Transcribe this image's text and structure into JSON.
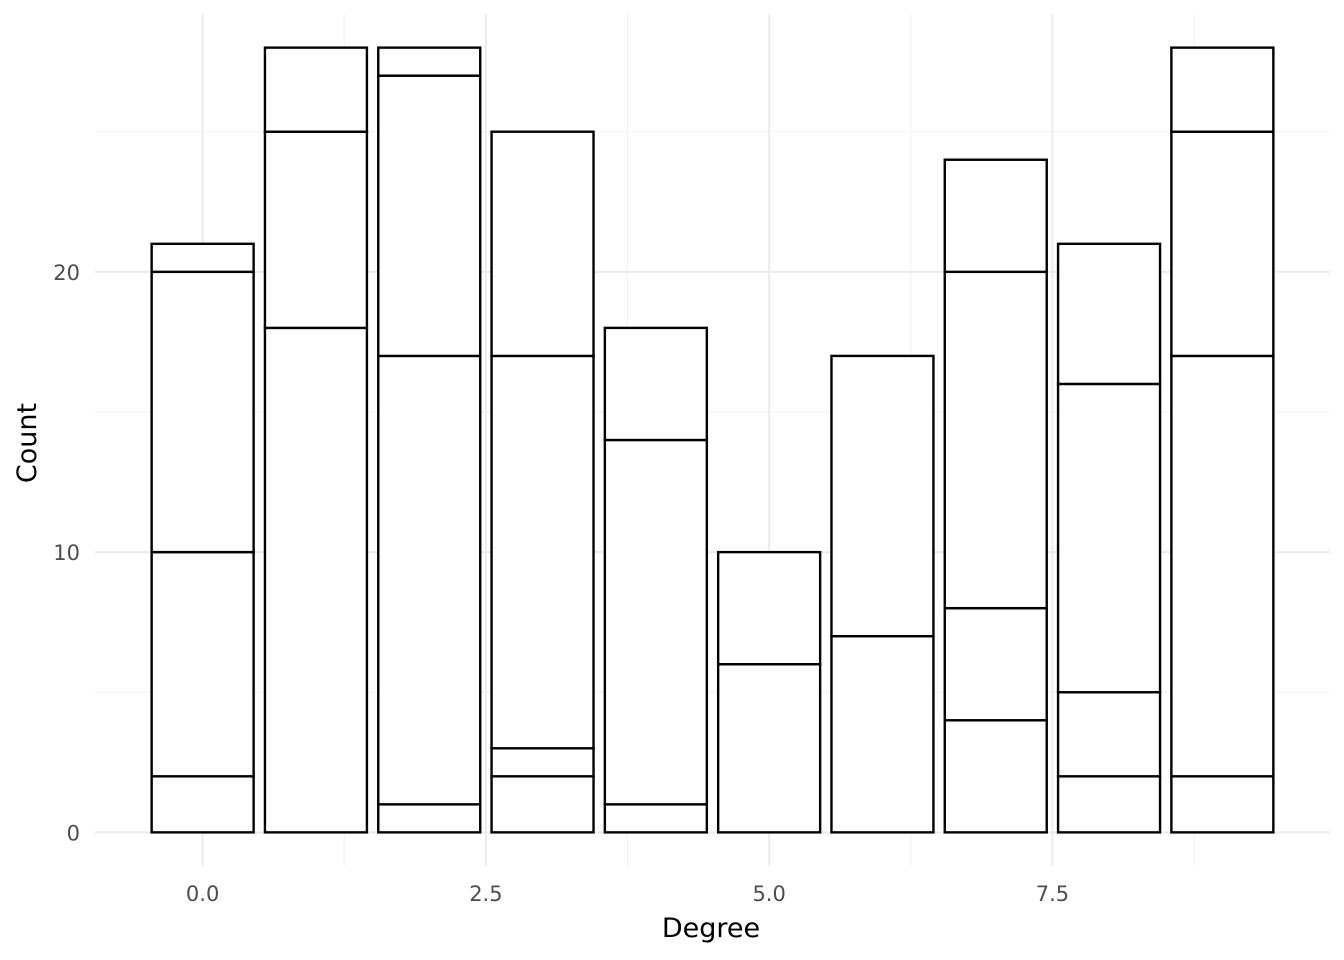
{
  "chart_data": {
    "type": "bar",
    "stacked": true,
    "title": "",
    "xlabel": "Degree",
    "ylabel": "Count",
    "xlim": [
      -0.95,
      9.95
    ],
    "ylim": [
      -1.2,
      29.2
    ],
    "x_ticks": [
      0.0,
      2.5,
      5.0,
      7.5
    ],
    "x_tick_labels": [
      "0.0",
      "2.5",
      "5.0",
      "7.5"
    ],
    "y_ticks": [
      0,
      10,
      20
    ],
    "y_tick_labels": [
      "0",
      "10",
      "20"
    ],
    "bar_width": 0.9,
    "grid": true,
    "legend": "none",
    "fill_color": "#ffffff",
    "outline_color": "#000000",
    "bars": [
      {
        "x": 0,
        "stack": [
          2,
          8,
          10,
          1
        ],
        "total": 21
      },
      {
        "x": 1,
        "stack": [
          18,
          7,
          3
        ],
        "total": 28
      },
      {
        "x": 2,
        "stack": [
          1,
          16,
          10,
          1
        ],
        "total": 28
      },
      {
        "x": 3,
        "stack": [
          2,
          1,
          14,
          8
        ],
        "total": 25
      },
      {
        "x": 4,
        "stack": [
          1,
          13,
          4
        ],
        "total": 18
      },
      {
        "x": 5,
        "stack": [
          6,
          4
        ],
        "total": 10
      },
      {
        "x": 6,
        "stack": [
          7,
          10
        ],
        "total": 17
      },
      {
        "x": 7,
        "stack": [
          4,
          4,
          12,
          4
        ],
        "total": 24
      },
      {
        "x": 8,
        "stack": [
          2,
          3,
          11,
          5
        ],
        "total": 21
      },
      {
        "x": 9,
        "stack": [
          2,
          15,
          8,
          3
        ],
        "total": 28
      }
    ]
  }
}
